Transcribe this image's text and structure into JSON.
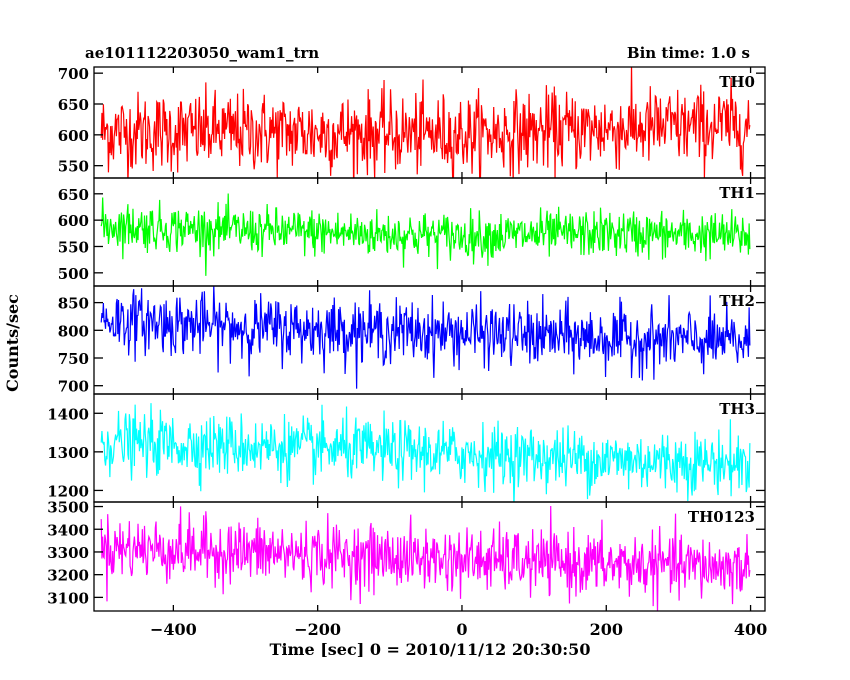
{
  "header": {
    "object": "ae101112203050_wam1_trn",
    "bin_time": "Bin time: 1.0 s"
  },
  "chart_data": {
    "type": "line",
    "title": "ae101112203050_wam1_trn",
    "subtitle": "Bin time: 1.0 s",
    "xlabel": "Time [sec] 0 = 2010/11/12 20:30:50",
    "ylabel": "Counts/sec",
    "xlim": [
      -510,
      420
    ],
    "x_ticks": [
      -400,
      -200,
      0,
      200,
      400
    ],
    "x_tick_labels": [
      "−400",
      "−200",
      "0",
      "200",
      "400"
    ],
    "x_start": -500,
    "x_end": 399,
    "panels": [
      {
        "name": "TH0",
        "color": "#ff0000",
        "ylim": [
          530,
          710
        ],
        "yticks": [
          550,
          600,
          650,
          700
        ],
        "trend": [
          [
            -500,
            605
          ],
          [
            -300,
            605
          ],
          [
            0,
            600
          ],
          [
            200,
            610
          ],
          [
            399,
            615
          ]
        ],
        "noise_sd": 32
      },
      {
        "name": "TH1",
        "color": "#00ff00",
        "ylim": [
          475,
          680
        ],
        "yticks": [
          500,
          550,
          600,
          650
        ],
        "trend": [
          [
            -500,
            590
          ],
          [
            -300,
            580
          ],
          [
            0,
            570
          ],
          [
            200,
            575
          ],
          [
            399,
            570
          ]
        ],
        "noise_sd": 22
      },
      {
        "name": "TH2",
        "color": "#0000ff",
        "ylim": [
          685,
          880
        ],
        "yticks": [
          700,
          750,
          800,
          850
        ],
        "trend": [
          [
            -500,
            820
          ],
          [
            -300,
            805
          ],
          [
            0,
            795
          ],
          [
            200,
            785
          ],
          [
            399,
            778
          ]
        ],
        "noise_sd": 28
      },
      {
        "name": "TH3",
        "color": "#00ffff",
        "ylim": [
          1170,
          1450
        ],
        "yticks": [
          1200,
          1300,
          1400
        ],
        "trend": [
          [
            -500,
            1325
          ],
          [
            -300,
            1315
          ],
          [
            0,
            1295
          ],
          [
            200,
            1280
          ],
          [
            399,
            1270
          ]
        ],
        "noise_sd": 40
      },
      {
        "name": "TH0123",
        "color": "#ff00ff",
        "ylim": [
          3040,
          3520
        ],
        "yticks": [
          3100,
          3200,
          3300,
          3400,
          3500
        ],
        "trend": [
          [
            -500,
            3320
          ],
          [
            -300,
            3300
          ],
          [
            0,
            3265
          ],
          [
            200,
            3245
          ],
          [
            399,
            3230
          ]
        ],
        "noise_sd": 70
      }
    ]
  }
}
